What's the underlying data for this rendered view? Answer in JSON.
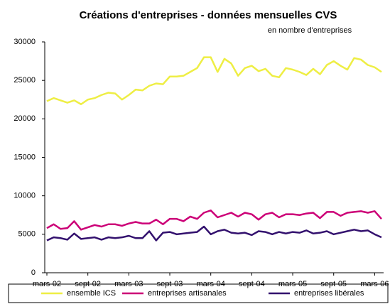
{
  "chart_data": {
    "type": "line",
    "title": "Créations d'entreprises - données mensuelles CVS",
    "subtitle": "en nombre d'entreprises",
    "categories": [
      "mars-02",
      null,
      null,
      null,
      null,
      null,
      "sept-02",
      null,
      null,
      null,
      null,
      null,
      "mars-03",
      null,
      null,
      null,
      null,
      null,
      "sept-03",
      null,
      null,
      null,
      null,
      null,
      "mars-04",
      null,
      null,
      null,
      null,
      null,
      "sept-04",
      null,
      null,
      null,
      null,
      null,
      "mars-05",
      null,
      null,
      null,
      null,
      null,
      "sept-05",
      null,
      null,
      null,
      null,
      null,
      "mars-06",
      null
    ],
    "series": [
      {
        "name": "ensemble ICS",
        "color": "#eeee44",
        "values": [
          22300,
          22700,
          22400,
          22100,
          22400,
          21900,
          22500,
          22700,
          23100,
          23400,
          23300,
          22500,
          23100,
          23800,
          23700,
          24300,
          24600,
          24500,
          25500,
          25500,
          25600,
          26100,
          26600,
          28000,
          28000,
          26100,
          27800,
          27200,
          25600,
          26600,
          26900,
          26200,
          26500,
          25600,
          25400,
          26600,
          26400,
          26100,
          25700,
          26500,
          25800,
          27000,
          27500,
          26900,
          26400,
          27900,
          27700,
          27000,
          26700,
          26100
        ]
      },
      {
        "name": "entreprises artisanales",
        "color": "#cc0077",
        "values": [
          5800,
          6300,
          5700,
          5800,
          6700,
          5600,
          5900,
          6200,
          6000,
          6300,
          6300,
          6100,
          6400,
          6600,
          6400,
          6400,
          6900,
          6300,
          7000,
          7000,
          6700,
          7300,
          7000,
          7800,
          8100,
          7200,
          7500,
          7800,
          7300,
          7800,
          7600,
          6900,
          7600,
          7800,
          7200,
          7600,
          7600,
          7500,
          7700,
          7800,
          7100,
          7900,
          7900,
          7400,
          7800,
          7900,
          8000,
          7800,
          8000,
          7000
        ]
      },
      {
        "name": "entreprises libérales",
        "color": "#33116e",
        "values": [
          4200,
          4600,
          4500,
          4300,
          5100,
          4400,
          4500,
          4600,
          4300,
          4600,
          4500,
          4600,
          4800,
          4500,
          4500,
          5400,
          4200,
          5200,
          5300,
          5000,
          5100,
          5200,
          5300,
          6000,
          5000,
          5400,
          5600,
          5200,
          5100,
          5200,
          4900,
          5400,
          5300,
          5000,
          5300,
          5100,
          5300,
          5200,
          5500,
          5100,
          5200,
          5400,
          5000,
          5200,
          5400,
          5600,
          5400,
          5500,
          5000,
          4600
        ]
      }
    ],
    "ylim": [
      0,
      30000
    ],
    "yticks": [
      0,
      5000,
      10000,
      15000,
      20000,
      25000,
      30000
    ],
    "grid": false
  }
}
